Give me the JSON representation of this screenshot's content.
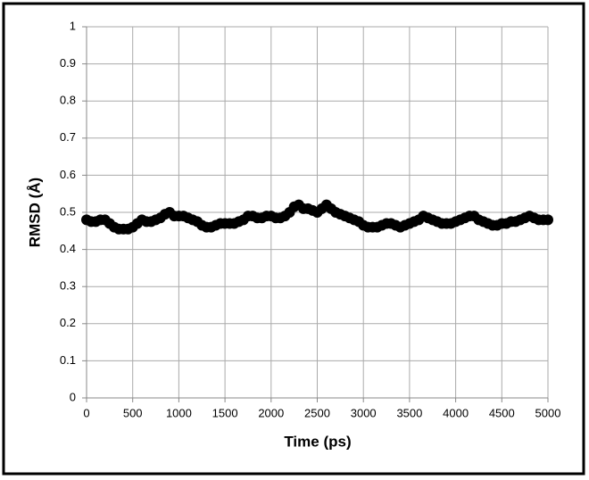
{
  "chart_data": {
    "type": "scatter",
    "x_label": "Time (ps)",
    "y_label": "RMSD (Å)",
    "x": [
      0,
      50,
      100,
      150,
      200,
      250,
      300,
      350,
      400,
      450,
      500,
      550,
      600,
      650,
      700,
      750,
      800,
      850,
      900,
      950,
      1000,
      1050,
      1100,
      1150,
      1200,
      1250,
      1300,
      1350,
      1400,
      1450,
      1500,
      1550,
      1600,
      1650,
      1700,
      1750,
      1800,
      1850,
      1900,
      1950,
      2000,
      2050,
      2100,
      2150,
      2200,
      2250,
      2300,
      2350,
      2400,
      2450,
      2500,
      2550,
      2600,
      2650,
      2700,
      2750,
      2800,
      2850,
      2900,
      2950,
      3000,
      3050,
      3100,
      3150,
      3200,
      3250,
      3300,
      3350,
      3400,
      3450,
      3500,
      3550,
      3600,
      3650,
      3700,
      3750,
      3800,
      3850,
      3900,
      3950,
      4000,
      4050,
      4100,
      4150,
      4200,
      4250,
      4300,
      4350,
      4400,
      4450,
      4500,
      4550,
      4600,
      4650,
      4700,
      4750,
      4800,
      4850,
      4900,
      4950,
      5000
    ],
    "values": [
      0.48,
      0.475,
      0.475,
      0.48,
      0.48,
      0.47,
      0.46,
      0.455,
      0.455,
      0.455,
      0.46,
      0.47,
      0.48,
      0.475,
      0.475,
      0.48,
      0.485,
      0.495,
      0.5,
      0.49,
      0.49,
      0.49,
      0.485,
      0.48,
      0.475,
      0.465,
      0.46,
      0.46,
      0.465,
      0.47,
      0.47,
      0.47,
      0.47,
      0.475,
      0.48,
      0.49,
      0.49,
      0.485,
      0.485,
      0.49,
      0.49,
      0.485,
      0.485,
      0.49,
      0.5,
      0.515,
      0.52,
      0.51,
      0.51,
      0.505,
      0.5,
      0.51,
      0.52,
      0.51,
      0.5,
      0.495,
      0.49,
      0.485,
      0.48,
      0.475,
      0.465,
      0.46,
      0.46,
      0.46,
      0.465,
      0.47,
      0.47,
      0.465,
      0.46,
      0.465,
      0.47,
      0.475,
      0.48,
      0.49,
      0.485,
      0.48,
      0.475,
      0.47,
      0.47,
      0.47,
      0.475,
      0.48,
      0.485,
      0.49,
      0.49,
      0.48,
      0.475,
      0.47,
      0.465,
      0.465,
      0.47,
      0.47,
      0.475,
      0.475,
      0.48,
      0.485,
      0.49,
      0.485,
      0.48,
      0.48,
      0.48
    ],
    "color": "#000000",
    "xlim": [
      0,
      5000
    ],
    "xticks": [
      0,
      500,
      1000,
      1500,
      2000,
      2500,
      3000,
      3500,
      4000,
      4500,
      5000
    ],
    "ylim": [
      0,
      1
    ],
    "yticks": [
      0,
      0.1,
      0.2,
      0.3,
      0.4,
      0.5,
      0.6,
      0.7,
      0.8,
      0.9,
      1
    ],
    "grid": true
  }
}
